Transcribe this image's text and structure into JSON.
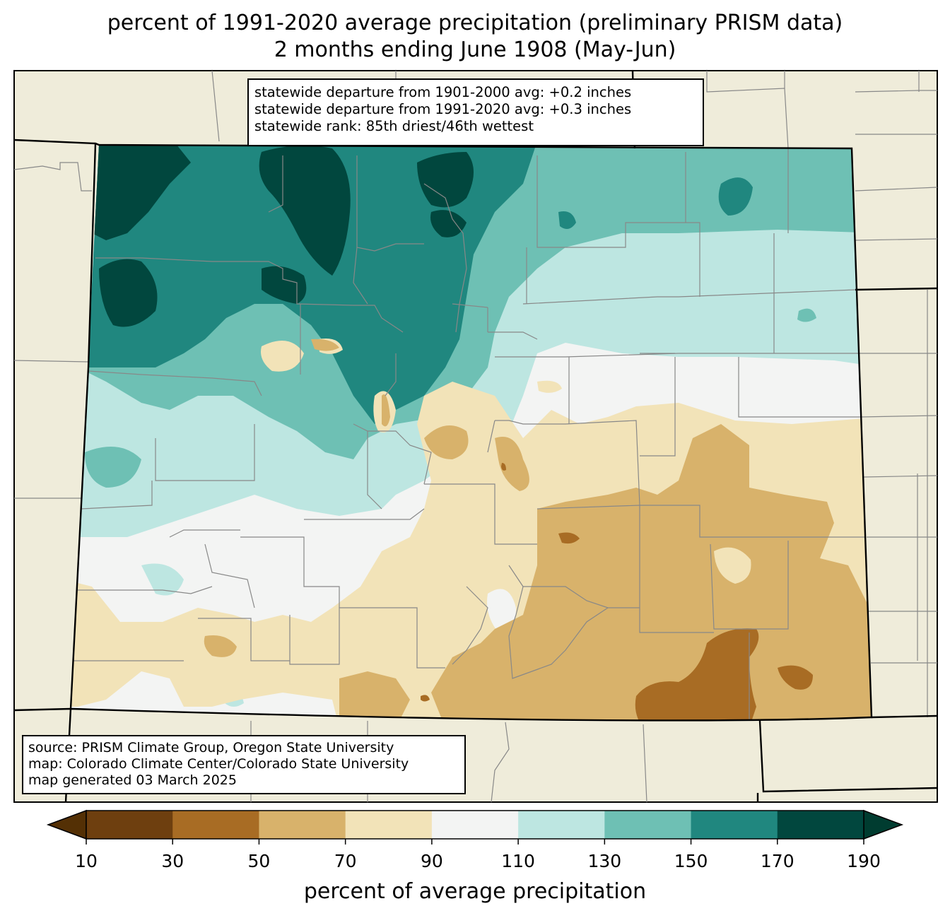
{
  "title": {
    "line1": "percent of 1991-2020 average precipitation (preliminary PRISM data)",
    "line2": "2 months ending June 1908 (May-Jun)"
  },
  "stats": {
    "line1": "statewide departure from 1901-2000 avg: +0.2 inches",
    "line2": "statewide departure from 1991-2020 avg: +0.3 inches",
    "line3": "statewide rank: 85th driest/46th wettest"
  },
  "source": {
    "line1": "source: PRISM Climate Group, Oregon State University",
    "line2": "map: Colorado Climate Center/Colorado State University",
    "line3": "map generated 03 March 2025"
  },
  "colorbar": {
    "label": "percent of average precipitation",
    "ticks": [
      "10",
      "30",
      "50",
      "70",
      "90",
      "110",
      "130",
      "150",
      "170",
      "190"
    ],
    "colors": [
      "#6e3f0f",
      "#a86c24",
      "#d8b26b",
      "#f2e3b8",
      "#f3f4f3",
      "#bde6e1",
      "#6ec0b4",
      "#20877f",
      "#01473e"
    ],
    "under_color": "#543005",
    "over_color": "#003c30"
  },
  "colors": {
    "background_land": "#efecda",
    "state_border": "#000000",
    "county_border": "#888888"
  }
}
